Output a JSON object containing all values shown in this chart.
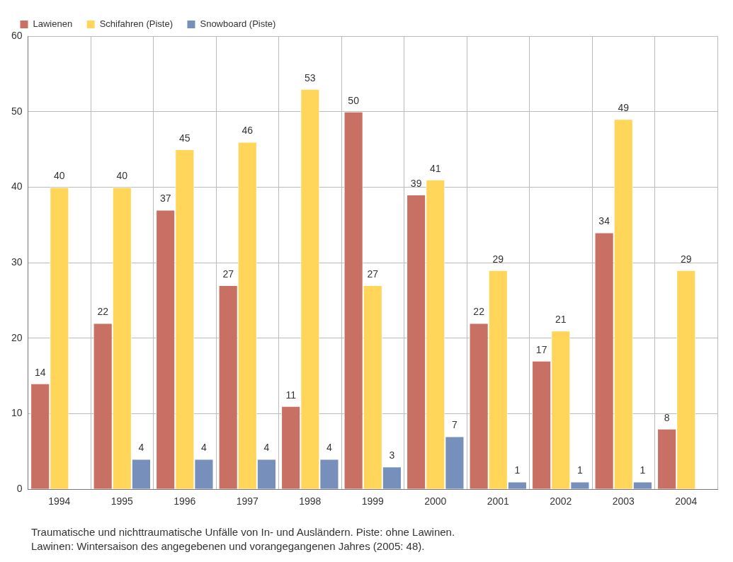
{
  "chart_data": {
    "type": "bar",
    "categories": [
      "1994",
      "1995",
      "1996",
      "1997",
      "1998",
      "1999",
      "2000",
      "2001",
      "2002",
      "2003",
      "2004"
    ],
    "series": [
      {
        "name": "Lawienen",
        "color": "#c87064",
        "values": [
          14,
          22,
          37,
          27,
          11,
          50,
          39,
          22,
          17,
          34,
          8
        ]
      },
      {
        "name": "Schifahren (Piste)",
        "color": "#ffd55a",
        "values": [
          40,
          40,
          45,
          46,
          53,
          27,
          41,
          29,
          21,
          49,
          29
        ]
      },
      {
        "name": "Snowboard (Piste)",
        "color": "#7690bb",
        "values": [
          null,
          4,
          4,
          4,
          4,
          3,
          7,
          1,
          1,
          1,
          null
        ]
      }
    ],
    "ylim": [
      0,
      60
    ],
    "yticks": [
      0,
      10,
      20,
      30,
      40,
      50,
      60
    ],
    "grid": true,
    "legend": "top left",
    "data_labels": true,
    "annotations": [
      "Traumatische und nichttraumatische Unfälle von In- und Ausländern. Piste: ohne Lawinen.",
      "Lawinen: Wintersaison des angegebenen und vorangegangenen Jahres (2005: 48)."
    ]
  }
}
